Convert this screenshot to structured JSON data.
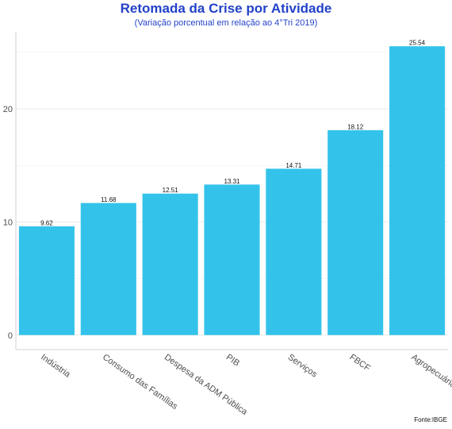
{
  "title": "Retomada da Crise por Atividade",
  "subtitle": "(Variação porcentual em relação ao 4°Tri 2019)",
  "caption": "Fonte:IBGE",
  "colors": {
    "bar": "#33c3ea",
    "title": "#2342c8",
    "grid": "#ebebeb",
    "axis": "#d0d0d0"
  },
  "chart_data": {
    "type": "bar",
    "categories": [
      "Indústria",
      "Consumo das Famílias",
      "Despesa da ADM Pública",
      "PIB",
      "Serviços",
      "FBCF",
      "Agropecuária"
    ],
    "values": [
      9.62,
      11.68,
      12.51,
      13.31,
      14.71,
      18.12,
      25.54
    ],
    "value_labels": [
      "9.62",
      "11.68",
      "12.51",
      "13.31",
      "14.71",
      "18.12",
      "25.54"
    ],
    "title": "Retomada da Crise por Atividade",
    "subtitle": "(Variação porcentual em relação ao 4°Tri 2019)",
    "xlabel": "",
    "ylabel": "",
    "ylim": [
      -1.28,
      26.82
    ],
    "yticks": [
      0,
      10,
      20
    ],
    "grid": true
  }
}
